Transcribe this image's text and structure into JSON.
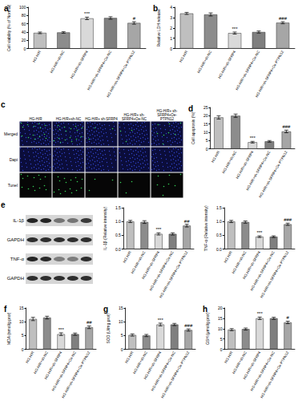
{
  "chart_data": [
    {
      "type": "bar",
      "panel_label": "a",
      "y_label": "Cell viability (% of Normal)",
      "categories": [
        "HG-H/R",
        "HG-H/R+sh-NC",
        "HG-H/R+sh-SFRP4",
        "HG-H/R+sh-SFRP4+Oe-NC",
        "HG-H/R+sh-SFRP4+Oe-PTPN12"
      ],
      "values": [
        38,
        39,
        73,
        74,
        62
      ],
      "errors": [
        2,
        2,
        3,
        3,
        3
      ],
      "annotations": [
        null,
        null,
        "***",
        null,
        "#"
      ],
      "colors": [
        "#bfbfbf",
        "#8c8c8c",
        "#d9d9d9",
        "#7f7f7f",
        "#a6a6a6"
      ],
      "ylim": [
        0,
        100
      ],
      "yticks": [
        0,
        20,
        40,
        60,
        80,
        100
      ],
      "grid": false
    },
    {
      "type": "bar",
      "panel_label": "b",
      "y_label": "Relative LDH release",
      "categories": [
        "HG-H/R",
        "HG-H/R+sh-NC",
        "HG-H/R+sh-SFRP4",
        "HG-H/R+sh-SFRP4+Oe-NC",
        "HG-H/R+sh-SFRP4+Oe-PTPN12"
      ],
      "values": [
        3.4,
        3.3,
        1.5,
        1.6,
        2.5
      ],
      "errors": [
        0.1,
        0.15,
        0.1,
        0.1,
        0.1
      ],
      "annotations": [
        null,
        null,
        "***",
        null,
        "###"
      ],
      "colors": [
        "#bfbfbf",
        "#8c8c8c",
        "#d9d9d9",
        "#7f7f7f",
        "#a6a6a6"
      ],
      "ylim": [
        0,
        4
      ],
      "yticks": [
        0,
        1,
        2,
        3,
        4
      ],
      "grid": false
    },
    {
      "type": "bar",
      "panel_label": "d",
      "y_label": "Cell apoptosis (%)",
      "categories": [
        "HG-H/R",
        "HG-H/R+sh-NC",
        "HG-H/R+sh-SFRP4",
        "HG-H/R+sh-SFRP4+Oe-NC",
        "HG-H/R+sh-SFRP4+Oe-PTPN12"
      ],
      "values": [
        19,
        20,
        4,
        4.5,
        10.5
      ],
      "errors": [
        1,
        1,
        0.5,
        0.5,
        0.8
      ],
      "annotations": [
        null,
        null,
        "***",
        null,
        "###"
      ],
      "colors": [
        "#bfbfbf",
        "#8c8c8c",
        "#d9d9d9",
        "#7f7f7f",
        "#a6a6a6"
      ],
      "ylim": [
        0,
        25
      ],
      "yticks": [
        0,
        5,
        10,
        15,
        20,
        25
      ],
      "grid": false
    },
    {
      "type": "bar",
      "y_label": "IL-1β (Relative intensity)",
      "categories": [
        "HG-H/R",
        "HG-H/R+sh-NC",
        "HG-H/R+sh-SFRP4",
        "HG-H/R+sh-SFRP4+Oe-NC",
        "HG-H/R+sh-SFRP4+Oe-PTPN12"
      ],
      "values": [
        1.0,
        0.98,
        0.55,
        0.55,
        0.85
      ],
      "errors": [
        0.04,
        0.05,
        0.04,
        0.04,
        0.05
      ],
      "annotations": [
        null,
        null,
        "***",
        null,
        "##"
      ],
      "colors": [
        "#bfbfbf",
        "#8c8c8c",
        "#d9d9d9",
        "#7f7f7f",
        "#a6a6a6"
      ],
      "ylim": [
        0,
        1.5
      ],
      "yticks": [
        {
          "value": 0,
          "label": "0.0"
        },
        {
          "value": 0.5,
          "label": "0.5"
        },
        {
          "value": 1,
          "label": "1.0"
        },
        {
          "value": 1.5,
          "label": "1.5"
        }
      ],
      "grid": false
    },
    {
      "type": "bar",
      "y_label": "TNF-α (Relative intensity)",
      "categories": [
        "HG-H/R",
        "HG-H/R+sh-NC",
        "HG-H/R+sh-SFRP4",
        "HG-H/R+sh-SFRP4+Oe-NC",
        "HG-H/R+sh-SFRP4+Oe-PTPN12"
      ],
      "values": [
        1.0,
        0.98,
        0.45,
        0.45,
        0.9
      ],
      "errors": [
        0.04,
        0.04,
        0.03,
        0.03,
        0.04
      ],
      "annotations": [
        null,
        null,
        "***",
        null,
        "###"
      ],
      "colors": [
        "#bfbfbf",
        "#8c8c8c",
        "#d9d9d9",
        "#7f7f7f",
        "#a6a6a6"
      ],
      "ylim": [
        0,
        1.5
      ],
      "yticks": [
        {
          "value": 0,
          "label": "0.0"
        },
        {
          "value": 0.5,
          "label": "0.5"
        },
        {
          "value": 1,
          "label": "1.0"
        },
        {
          "value": 1.5,
          "label": "1.5"
        }
      ],
      "grid": false
    },
    {
      "type": "bar",
      "panel_label": "f",
      "y_label": "MDA (nmol/g prot)",
      "categories": [
        "HG-H/R",
        "HG-H/R+sh-NC",
        "HG-H/R+sh-SFRP4",
        "HG-H/R+sh-SFRP4+Oe-NC",
        "HG-H/R+sh-SFRP4+Oe-PTPN12"
      ],
      "values": [
        11,
        11.5,
        5.5,
        5.5,
        8
      ],
      "errors": [
        0.6,
        0.5,
        0.5,
        0.4,
        0.5
      ],
      "annotations": [
        null,
        null,
        "***",
        null,
        "##"
      ],
      "colors": [
        "#bfbfbf",
        "#8c8c8c",
        "#d9d9d9",
        "#7f7f7f",
        "#a6a6a6"
      ],
      "ylim": [
        0,
        15
      ],
      "yticks": [
        0,
        5,
        10,
        15
      ],
      "grid": false
    },
    {
      "type": "bar",
      "panel_label": "g",
      "y_label": "SOD (U/mg prot)",
      "categories": [
        "HG-H/R",
        "HG-H/R+sh-NC",
        "HG-H/R+sh-SFRP4",
        "HG-H/R+sh-SFRP4+Oe-NC",
        "HG-H/R+sh-SFRP4+Oe-PTPN12"
      ],
      "values": [
        5.2,
        5,
        9,
        9,
        7
      ],
      "errors": [
        0.4,
        0.4,
        0.5,
        0.4,
        0.4
      ],
      "annotations": [
        null,
        null,
        "***",
        null,
        "###"
      ],
      "colors": [
        "#bfbfbf",
        "#8c8c8c",
        "#d9d9d9",
        "#7f7f7f",
        "#a6a6a6"
      ],
      "ylim": [
        0,
        15
      ],
      "yticks": [
        0,
        5,
        10,
        15
      ],
      "grid": false
    },
    {
      "type": "bar",
      "panel_label": "h",
      "y_label": "GSH (μmol/g prot)",
      "categories": [
        "HG-H/R",
        "HG-H/R+sh-NC",
        "HG-H/R+sh-SFRP4",
        "HG-H/R+sh-SFRP4+Oe-NC",
        "HG-H/R+sh-SFRP4+Oe-PTPN12"
      ],
      "values": [
        9.5,
        9.8,
        15,
        15,
        13
      ],
      "errors": [
        0.5,
        0.5,
        0.6,
        0.5,
        0.6
      ],
      "annotations": [
        null,
        null,
        "***",
        null,
        "#"
      ],
      "colors": [
        "#bfbfbf",
        "#8c8c8c",
        "#d9d9d9",
        "#7f7f7f",
        "#a6a6a6"
      ],
      "ylim": [
        0,
        20
      ],
      "yticks": [
        0,
        5,
        10,
        15,
        20
      ],
      "grid": false
    }
  ],
  "images": {
    "tunel": {
      "panel_label": "c",
      "rows": [
        "Merged",
        "Dapi",
        "Tunel"
      ],
      "columns": [
        "HG-H/R",
        "HG-H/R+sh-NC",
        "HG-H/R+ sh-SFRP4",
        "HG-H/R+ sh-SFRP4+Oe-NC",
        "HG-H/R+ sh-SFRP4+Oe-PTPN12"
      ]
    },
    "western_blot": {
      "panel_label": "e",
      "rows": [
        "IL-1β",
        "GAPDH",
        "TNF-α",
        "GAPDH"
      ]
    }
  }
}
